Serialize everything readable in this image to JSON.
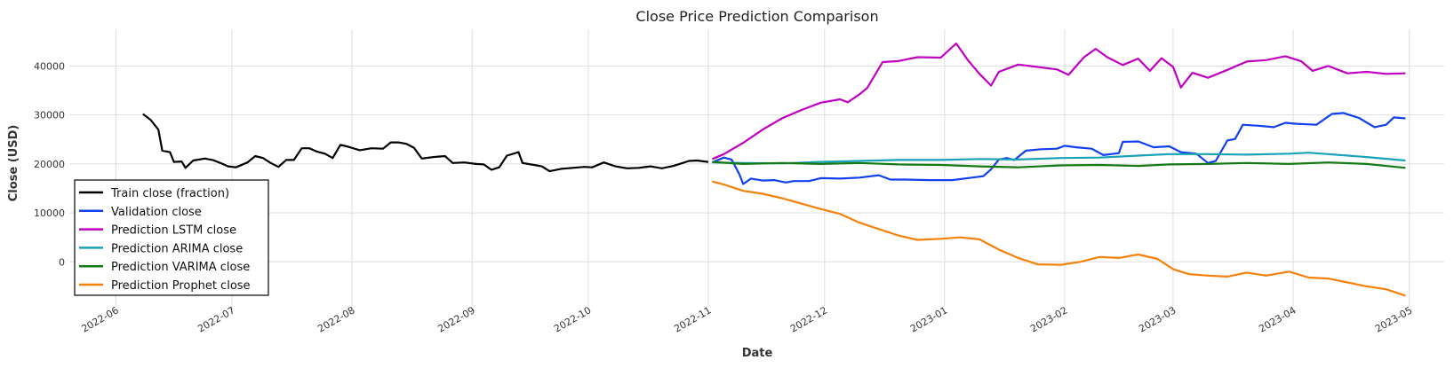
{
  "chart_data": {
    "type": "line",
    "title": "Close Price Prediction Comparison",
    "xlabel": "Date",
    "ylabel": "Close (USD)",
    "x_ticks": [
      "2022-06",
      "2022-07",
      "2022-08",
      "2022-09",
      "2022-10",
      "2022-11",
      "2022-12",
      "2023-01",
      "2023-02",
      "2023-03",
      "2023-04",
      "2023-05"
    ],
    "y_ticks": [
      0,
      10000,
      20000,
      30000,
      40000
    ],
    "xlim": [
      "2022-05-20",
      "2023-05-10"
    ],
    "ylim": [
      -9000,
      47500
    ],
    "grid": true,
    "legend_position": "lower-left",
    "series": [
      {
        "name": "Train close (fraction)",
        "color": "#000000",
        "points": [
          [
            "2022-06-08",
            30200
          ],
          [
            "2022-06-10",
            29000
          ],
          [
            "2022-06-12",
            27000
          ],
          [
            "2022-06-13",
            22700
          ],
          [
            "2022-06-15",
            22400
          ],
          [
            "2022-06-16",
            20400
          ],
          [
            "2022-06-18",
            20500
          ],
          [
            "2022-06-19",
            19200
          ],
          [
            "2022-06-21",
            20700
          ],
          [
            "2022-06-24",
            21100
          ],
          [
            "2022-06-26",
            20800
          ],
          [
            "2022-06-28",
            20200
          ],
          [
            "2022-06-30",
            19500
          ],
          [
            "2022-07-02",
            19300
          ],
          [
            "2022-07-05",
            20300
          ],
          [
            "2022-07-07",
            21600
          ],
          [
            "2022-07-09",
            21200
          ],
          [
            "2022-07-11",
            20200
          ],
          [
            "2022-07-13",
            19400
          ],
          [
            "2022-07-15",
            20800
          ],
          [
            "2022-07-17",
            20800
          ],
          [
            "2022-07-19",
            23200
          ],
          [
            "2022-07-21",
            23200
          ],
          [
            "2022-07-23",
            22500
          ],
          [
            "2022-07-25",
            22100
          ],
          [
            "2022-07-27",
            21200
          ],
          [
            "2022-07-29",
            23900
          ],
          [
            "2022-07-31",
            23500
          ],
          [
            "2022-08-03",
            22800
          ],
          [
            "2022-08-06",
            23200
          ],
          [
            "2022-08-09",
            23100
          ],
          [
            "2022-08-11",
            24400
          ],
          [
            "2022-08-13",
            24400
          ],
          [
            "2022-08-15",
            24100
          ],
          [
            "2022-08-17",
            23300
          ],
          [
            "2022-08-19",
            21100
          ],
          [
            "2022-08-22",
            21400
          ],
          [
            "2022-08-25",
            21600
          ],
          [
            "2022-08-27",
            20200
          ],
          [
            "2022-08-30",
            20300
          ],
          [
            "2022-09-02",
            20000
          ],
          [
            "2022-09-04",
            19900
          ],
          [
            "2022-09-06",
            18800
          ],
          [
            "2022-09-08",
            19300
          ],
          [
            "2022-09-10",
            21700
          ],
          [
            "2022-09-13",
            22400
          ],
          [
            "2022-09-14",
            20200
          ],
          [
            "2022-09-17",
            19800
          ],
          [
            "2022-09-19",
            19500
          ],
          [
            "2022-09-21",
            18500
          ],
          [
            "2022-09-24",
            19000
          ],
          [
            "2022-09-27",
            19200
          ],
          [
            "2022-09-30",
            19400
          ],
          [
            "2022-10-02",
            19300
          ],
          [
            "2022-10-05",
            20300
          ],
          [
            "2022-10-08",
            19500
          ],
          [
            "2022-10-11",
            19100
          ],
          [
            "2022-10-14",
            19200
          ],
          [
            "2022-10-17",
            19500
          ],
          [
            "2022-10-20",
            19100
          ],
          [
            "2022-10-23",
            19600
          ],
          [
            "2022-10-25",
            20100
          ],
          [
            "2022-10-27",
            20600
          ],
          [
            "2022-10-29",
            20700
          ],
          [
            "2022-11-01",
            20400
          ]
        ]
      },
      {
        "name": "Validation close",
        "color": "#1140f0",
        "points": [
          [
            "2022-11-02",
            20300
          ],
          [
            "2022-11-05",
            21300
          ],
          [
            "2022-11-07",
            20900
          ],
          [
            "2022-11-09",
            17900
          ],
          [
            "2022-11-10",
            15900
          ],
          [
            "2022-11-12",
            17000
          ],
          [
            "2022-11-15",
            16600
          ],
          [
            "2022-11-18",
            16700
          ],
          [
            "2022-11-21",
            16200
          ],
          [
            "2022-11-23",
            16500
          ],
          [
            "2022-11-27",
            16500
          ],
          [
            "2022-11-30",
            17100
          ],
          [
            "2022-12-05",
            17000
          ],
          [
            "2022-12-10",
            17200
          ],
          [
            "2022-12-15",
            17700
          ],
          [
            "2022-12-18",
            16800
          ],
          [
            "2022-12-22",
            16800
          ],
          [
            "2022-12-28",
            16700
          ],
          [
            "2023-01-03",
            16700
          ],
          [
            "2023-01-08",
            17200
          ],
          [
            "2023-01-11",
            17500
          ],
          [
            "2023-01-13",
            18900
          ],
          [
            "2023-01-15",
            20900
          ],
          [
            "2023-01-17",
            21200
          ],
          [
            "2023-01-19",
            20800
          ],
          [
            "2023-01-22",
            22700
          ],
          [
            "2023-01-26",
            23000
          ],
          [
            "2023-01-30",
            23100
          ],
          [
            "2023-02-01",
            23700
          ],
          [
            "2023-02-04",
            23400
          ],
          [
            "2023-02-08",
            23100
          ],
          [
            "2023-02-11",
            21800
          ],
          [
            "2023-02-15",
            22200
          ],
          [
            "2023-02-16",
            24500
          ],
          [
            "2023-02-20",
            24600
          ],
          [
            "2023-02-24",
            23400
          ],
          [
            "2023-02-28",
            23600
          ],
          [
            "2023-03-03",
            22400
          ],
          [
            "2023-03-07",
            22100
          ],
          [
            "2023-03-10",
            20200
          ],
          [
            "2023-03-12",
            20600
          ],
          [
            "2023-03-15",
            24800
          ],
          [
            "2023-03-17",
            25100
          ],
          [
            "2023-03-19",
            28000
          ],
          [
            "2023-03-23",
            27800
          ],
          [
            "2023-03-27",
            27500
          ],
          [
            "2023-03-30",
            28400
          ],
          [
            "2023-04-02",
            28200
          ],
          [
            "2023-04-07",
            28000
          ],
          [
            "2023-04-11",
            30200
          ],
          [
            "2023-04-14",
            30400
          ],
          [
            "2023-04-18",
            29400
          ],
          [
            "2023-04-22",
            27500
          ],
          [
            "2023-04-25",
            28000
          ],
          [
            "2023-04-27",
            29500
          ],
          [
            "2023-04-30",
            29300
          ]
        ]
      },
      {
        "name": "Prediction LSTM close",
        "color": "#c000c0",
        "points": [
          [
            "2022-11-02",
            21000
          ],
          [
            "2022-11-05",
            22000
          ],
          [
            "2022-11-10",
            24300
          ],
          [
            "2022-11-15",
            27000
          ],
          [
            "2022-11-20",
            29300
          ],
          [
            "2022-11-25",
            31000
          ],
          [
            "2022-11-30",
            32500
          ],
          [
            "2022-12-05",
            33200
          ],
          [
            "2022-12-07",
            32600
          ],
          [
            "2022-12-10",
            34200
          ],
          [
            "2022-12-12",
            35500
          ],
          [
            "2022-12-16",
            40800
          ],
          [
            "2022-12-20",
            41000
          ],
          [
            "2022-12-25",
            41800
          ],
          [
            "2022-12-31",
            41700
          ],
          [
            "2023-01-04",
            44600
          ],
          [
            "2023-01-07",
            41200
          ],
          [
            "2023-01-10",
            38400
          ],
          [
            "2023-01-13",
            36000
          ],
          [
            "2023-01-15",
            38800
          ],
          [
            "2023-01-20",
            40300
          ],
          [
            "2023-01-25",
            39800
          ],
          [
            "2023-01-30",
            39300
          ],
          [
            "2023-02-02",
            38200
          ],
          [
            "2023-02-06",
            41800
          ],
          [
            "2023-02-09",
            43500
          ],
          [
            "2023-02-12",
            41800
          ],
          [
            "2023-02-16",
            40200
          ],
          [
            "2023-02-20",
            41500
          ],
          [
            "2023-02-23",
            39000
          ],
          [
            "2023-02-26",
            41600
          ],
          [
            "2023-03-01",
            39800
          ],
          [
            "2023-03-03",
            35600
          ],
          [
            "2023-03-06",
            38600
          ],
          [
            "2023-03-10",
            37600
          ],
          [
            "2023-03-15",
            39200
          ],
          [
            "2023-03-20",
            40900
          ],
          [
            "2023-03-25",
            41200
          ],
          [
            "2023-03-30",
            42000
          ],
          [
            "2023-04-03",
            41000
          ],
          [
            "2023-04-06",
            39000
          ],
          [
            "2023-04-10",
            40000
          ],
          [
            "2023-04-15",
            38500
          ],
          [
            "2023-04-20",
            38800
          ],
          [
            "2023-04-25",
            38400
          ],
          [
            "2023-04-30",
            38500
          ]
        ]
      },
      {
        "name": "Prediction ARIMA close",
        "color": "#17a2b8",
        "points": [
          [
            "2022-11-02",
            20300
          ],
          [
            "2022-11-10",
            20200
          ],
          [
            "2022-11-20",
            20100
          ],
          [
            "2022-11-30",
            20400
          ],
          [
            "2022-12-10",
            20600
          ],
          [
            "2022-12-20",
            20800
          ],
          [
            "2022-12-31",
            20800
          ],
          [
            "2023-01-10",
            21000
          ],
          [
            "2023-01-20",
            20900
          ],
          [
            "2023-01-31",
            21200
          ],
          [
            "2023-02-10",
            21300
          ],
          [
            "2023-02-20",
            21700
          ],
          [
            "2023-02-28",
            22000
          ],
          [
            "2023-03-10",
            22000
          ],
          [
            "2023-03-20",
            21900
          ],
          [
            "2023-03-31",
            22100
          ],
          [
            "2023-04-05",
            22300
          ],
          [
            "2023-04-10",
            22000
          ],
          [
            "2023-04-20",
            21400
          ],
          [
            "2023-04-30",
            20700
          ]
        ]
      },
      {
        "name": "Prediction VARIMA close",
        "color": "#137a13",
        "points": [
          [
            "2022-11-02",
            20400
          ],
          [
            "2022-11-10",
            20000
          ],
          [
            "2022-11-20",
            20200
          ],
          [
            "2022-11-30",
            20000
          ],
          [
            "2022-12-10",
            20200
          ],
          [
            "2022-12-20",
            19900
          ],
          [
            "2022-12-31",
            19800
          ],
          [
            "2023-01-10",
            19500
          ],
          [
            "2023-01-20",
            19300
          ],
          [
            "2023-01-31",
            19700
          ],
          [
            "2023-02-10",
            19800
          ],
          [
            "2023-02-20",
            19600
          ],
          [
            "2023-02-28",
            19900
          ],
          [
            "2023-03-10",
            20000
          ],
          [
            "2023-03-20",
            20200
          ],
          [
            "2023-03-31",
            20000
          ],
          [
            "2023-04-10",
            20300
          ],
          [
            "2023-04-20",
            20000
          ],
          [
            "2023-04-30",
            19200
          ]
        ]
      },
      {
        "name": "Prediction Prophet close",
        "color": "#f5800a",
        "points": [
          [
            "2022-11-02",
            16400
          ],
          [
            "2022-11-05",
            15800
          ],
          [
            "2022-11-10",
            14500
          ],
          [
            "2022-11-15",
            13900
          ],
          [
            "2022-11-20",
            13000
          ],
          [
            "2022-11-25",
            11900
          ],
          [
            "2022-11-30",
            10800
          ],
          [
            "2022-12-05",
            9800
          ],
          [
            "2022-12-10",
            8000
          ],
          [
            "2022-12-15",
            6700
          ],
          [
            "2022-12-20",
            5400
          ],
          [
            "2022-12-25",
            4500
          ],
          [
            "2022-12-31",
            4700
          ],
          [
            "2023-01-05",
            5000
          ],
          [
            "2023-01-10",
            4600
          ],
          [
            "2023-01-15",
            2500
          ],
          [
            "2023-01-20",
            800
          ],
          [
            "2023-01-25",
            -500
          ],
          [
            "2023-01-31",
            -600
          ],
          [
            "2023-02-05",
            0
          ],
          [
            "2023-02-10",
            1000
          ],
          [
            "2023-02-15",
            800
          ],
          [
            "2023-02-20",
            1500
          ],
          [
            "2023-02-25",
            600
          ],
          [
            "2023-03-01",
            -1500
          ],
          [
            "2023-03-05",
            -2500
          ],
          [
            "2023-03-10",
            -2800
          ],
          [
            "2023-03-15",
            -3000
          ],
          [
            "2023-03-20",
            -2200
          ],
          [
            "2023-03-25",
            -2800
          ],
          [
            "2023-03-31",
            -2000
          ],
          [
            "2023-04-05",
            -3200
          ],
          [
            "2023-04-10",
            -3400
          ],
          [
            "2023-04-15",
            -4200
          ],
          [
            "2023-04-20",
            -5000
          ],
          [
            "2023-04-25",
            -5600
          ],
          [
            "2023-04-30",
            -6900
          ]
        ]
      }
    ]
  }
}
